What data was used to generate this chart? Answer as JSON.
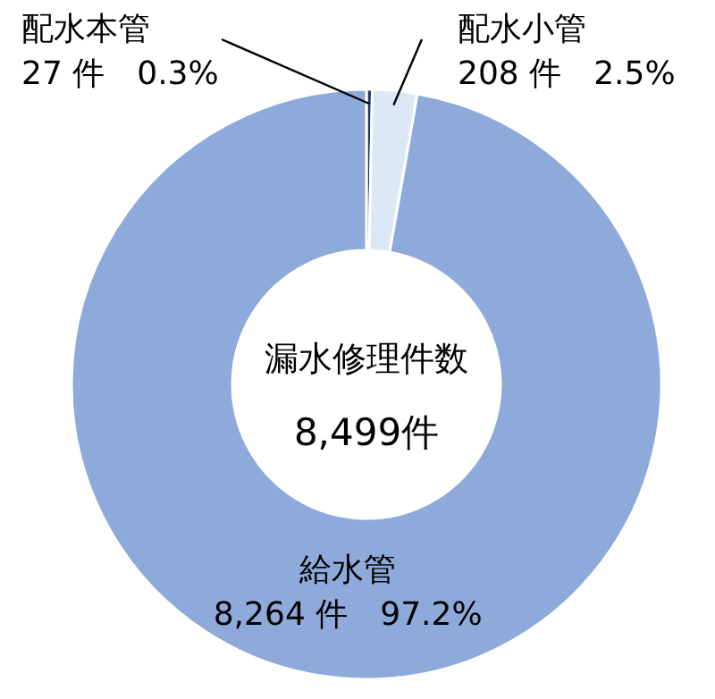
{
  "chart_data": {
    "type": "donut",
    "title": "漏水修理件数",
    "annotations": [
      "8,499件"
    ],
    "categories": [
      "配水本管",
      "配水小管",
      "給水管"
    ],
    "values": [
      27,
      208,
      8264
    ],
    "value_labels": [
      "27 件　0.3%",
      "208 件　2.5%",
      "8,264 件　97.2%"
    ],
    "colors": [
      "#1f3864",
      "#dde8f6",
      "#8eaadb"
    ]
  }
}
